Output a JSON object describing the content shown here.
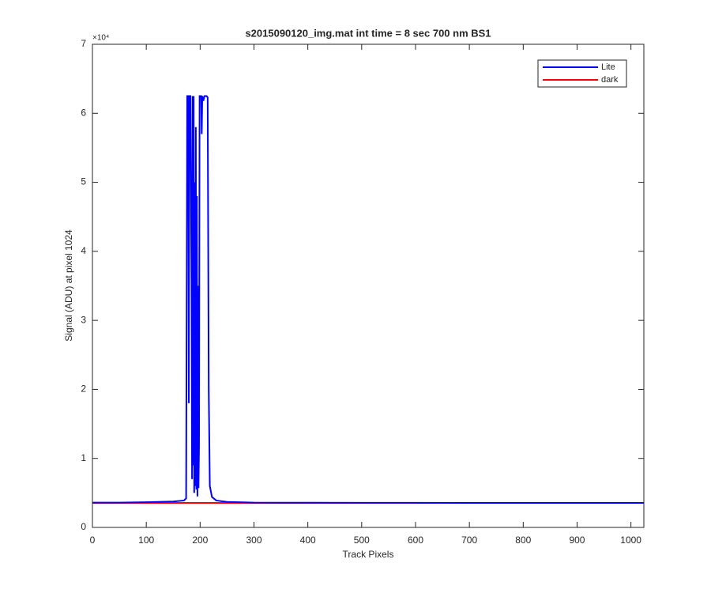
{
  "chart_data": {
    "type": "line",
    "title": "s2015090120_img.mat int time = 8 sec  700 nm BS1",
    "x_label": "Track Pixels",
    "y_label": "Signal (ADU) at pixel 1024",
    "y_exponent": "×10⁴",
    "xlim": [
      0,
      1024
    ],
    "ylim": [
      0,
      70000
    ],
    "xticks": [
      0,
      100,
      200,
      300,
      400,
      500,
      600,
      700,
      800,
      900,
      1000
    ],
    "yticks": [
      0,
      {
        "value": 10000,
        "label": "1"
      },
      {
        "value": 20000,
        "label": "2"
      },
      {
        "value": 30000,
        "label": "3"
      },
      {
        "value": 40000,
        "label": "4"
      },
      {
        "value": 50000,
        "label": "5"
      },
      {
        "value": 60000,
        "label": "6"
      },
      {
        "value": 70000,
        "label": "7"
      }
    ],
    "legend_position": "top-right",
    "series": [
      {
        "name": "Lite",
        "color": "#0000ff",
        "x": [
          0,
          50,
          100,
          150,
          170,
          174,
          176,
          178,
          179,
          180,
          182,
          184,
          185,
          186,
          187,
          188,
          189,
          190,
          191,
          192,
          193,
          194,
          195,
          196,
          197,
          198,
          199,
          202,
          203,
          204,
          206,
          208,
          212,
          214,
          216,
          218,
          222,
          230,
          250,
          300,
          400,
          500,
          600,
          700,
          800,
          900,
          1024
        ],
        "values": [
          3600,
          3600,
          3650,
          3750,
          3900,
          4200,
          62500,
          62500,
          18000,
          62500,
          62500,
          35000,
          7000,
          62500,
          9000,
          62500,
          5000,
          50000,
          6000,
          58000,
          5500,
          48000,
          4500,
          35000,
          5700,
          12000,
          62500,
          62500,
          57000,
          62500,
          61800,
          62500,
          62500,
          62300,
          20000,
          6000,
          4400,
          3900,
          3700,
          3600,
          3580,
          3560,
          3560,
          3550,
          3550,
          3550,
          3550
        ]
      },
      {
        "name": "dark",
        "color": "#ff0000",
        "x": [
          0,
          100,
          200,
          300,
          400,
          500,
          600,
          700,
          800,
          900,
          1024
        ],
        "values": [
          3550,
          3550,
          3550,
          3550,
          3550,
          3550,
          3550,
          3550,
          3550,
          3550,
          3550
        ]
      }
    ]
  }
}
